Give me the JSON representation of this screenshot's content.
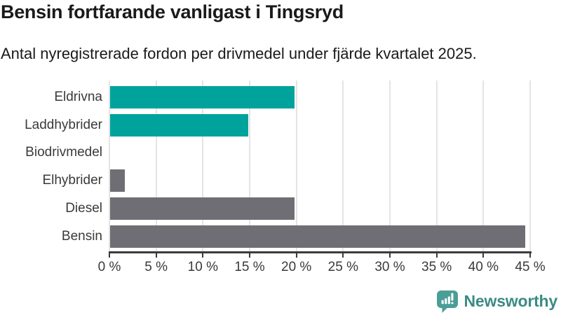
{
  "header": {
    "title": "Bensin fortfarande vanligast i Tingsryd",
    "subtitle": "Antal nyregistrerade fordon per drivmedel under fjärde kvartalet 2025."
  },
  "chart_data": {
    "type": "bar",
    "orientation": "horizontal",
    "title": "Bensin fortfarande vanligast i Tingsryd",
    "subtitle": "Antal nyregistrerade fordon per drivmedel under fjärde kvartalet 2025.",
    "categories": [
      "Eldrivna",
      "Laddhybrider",
      "Biodrivmedel",
      "Elhybrider",
      "Diesel",
      "Bensin"
    ],
    "values": [
      19.7,
      14.8,
      0,
      1.6,
      19.7,
      44.4
    ],
    "unit": "%",
    "bar_colors": [
      "#00a39b",
      "#00a39b",
      "#6e6e74",
      "#6e6e74",
      "#6e6e74",
      "#6e6e74"
    ],
    "xlabel": "",
    "ylabel": "",
    "xlim": [
      0,
      45
    ],
    "x_ticks": [
      0,
      5,
      10,
      15,
      20,
      25,
      30,
      35,
      40,
      45
    ],
    "x_tick_suffix": " %",
    "grid": "vertical",
    "legend": "none"
  },
  "branding": {
    "label": "Newsworthy",
    "icon": "newsworthy-speech-bubble-chart-icon",
    "icon_color": "#4a9e97",
    "text_color": "#3a8b84"
  },
  "colors": {
    "accent_teal": "#00a39b",
    "neutral_gray": "#6e6e74",
    "axis": "#3b3b3b",
    "grid": "#e4e4e4",
    "text": "#1a1a1a"
  }
}
